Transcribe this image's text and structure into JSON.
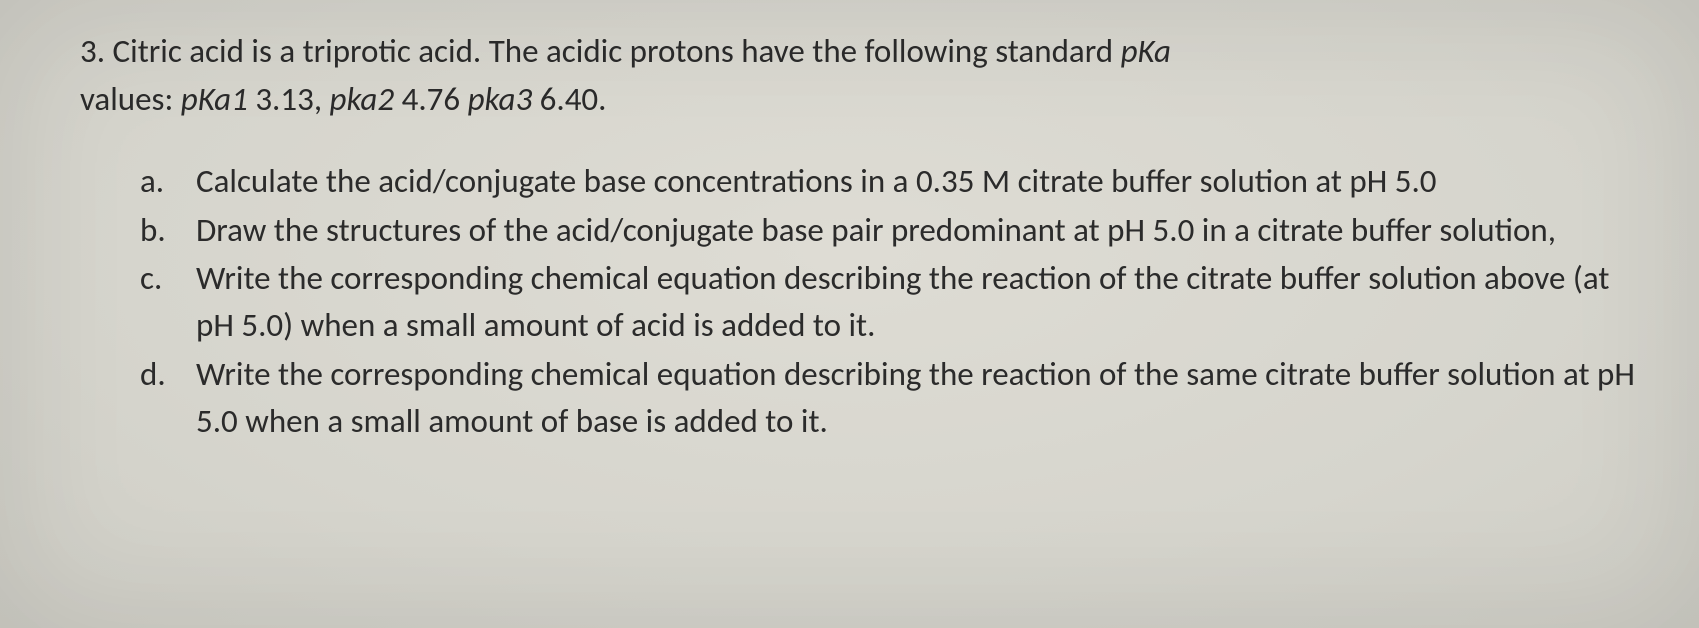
{
  "question": {
    "number": "3.",
    "stem_part1": "Citric acid is a triprotic acid. The acidic protons have the following standard ",
    "pka_label": "pKa",
    "stem_part2": " values: ",
    "pka1_label": "pKa1",
    "pka1_val": " 3.13, ",
    "pka2_label": "pka2",
    "pka2_val": " 4.76 ",
    "pka3_label": "pka3",
    "pka3_val": " 6.40."
  },
  "parts": {
    "a": {
      "letter": "a.",
      "text": "Calculate the acid/conjugate base concentrations in a 0.35 M citrate buffer solution at pH 5.0"
    },
    "b": {
      "letter": "b.",
      "text": "Draw the structures of the acid/conjugate base pair predominant at pH 5.0 in a citrate buffer solution,"
    },
    "c": {
      "letter": "c.",
      "text": "Write the corresponding chemical equation describing the reaction of the citrate buffer solution above (at pH 5.0) when a small amount of acid is added to it."
    },
    "d": {
      "letter": "d.",
      "text": "Write the corresponding chemical equation describing the reaction of the same citrate buffer solution at pH 5.0 when a small amount of base is added to it."
    }
  }
}
